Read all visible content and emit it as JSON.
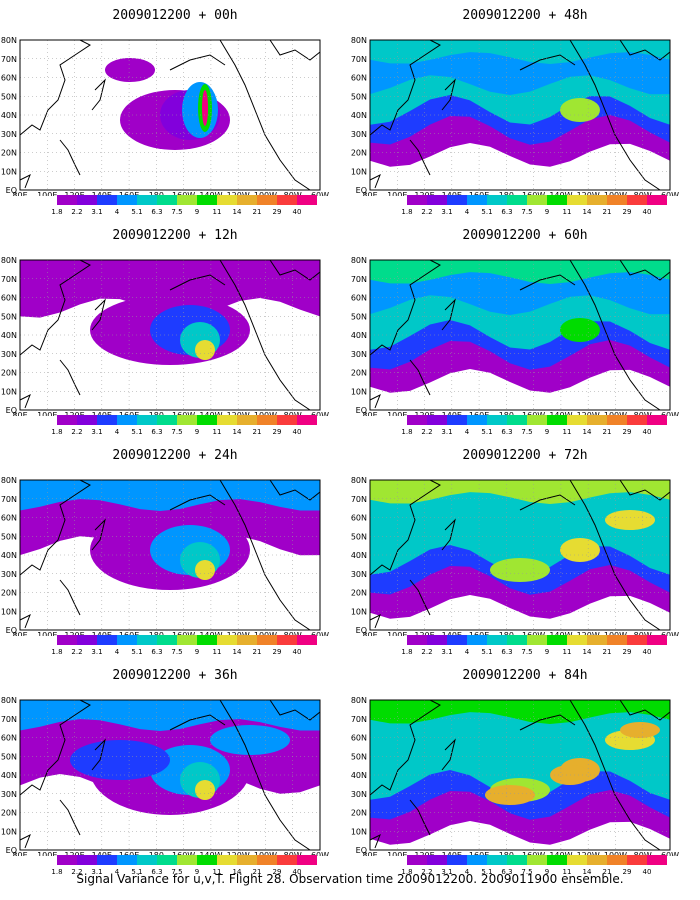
{
  "colorbar": {
    "labels": [
      "1.8",
      "2.2",
      "3.1",
      "4",
      "5.1",
      "6.3",
      "7.5",
      "9",
      "11",
      "14",
      "21",
      "29",
      "40"
    ],
    "colors": [
      "#a000c8",
      "#8200dc",
      "#1e3cff",
      "#0096ff",
      "#00c8c8",
      "#00dc8c",
      "#a0e632",
      "#00dc00",
      "#e6dc32",
      "#e6af2d",
      "#f08228",
      "#fa3c3c",
      "#f00082"
    ]
  },
  "axes": {
    "lon_ticks": [
      "80E",
      "100E",
      "120E",
      "140E",
      "160E",
      "180",
      "160W",
      "140W",
      "120W",
      "100W",
      "80W",
      "60W"
    ],
    "lat_ticks": [
      "EQ",
      "10N",
      "20N",
      "30N",
      "40N",
      "50N",
      "60N",
      "70N",
      "80N"
    ]
  },
  "panels": [
    {
      "title": "2009012200 + 00h",
      "level": 0,
      "side": "left"
    },
    {
      "title": "2009012200 + 12h",
      "level": 1,
      "side": "left"
    },
    {
      "title": "2009012200 + 24h",
      "level": 2,
      "side": "left"
    },
    {
      "title": "2009012200 + 36h",
      "level": 3,
      "side": "left"
    },
    {
      "title": "2009012200 + 48h",
      "level": 4,
      "side": "right"
    },
    {
      "title": "2009012200 + 60h",
      "level": 5,
      "side": "right"
    },
    {
      "title": "2009012200 + 72h",
      "level": 6,
      "side": "right"
    },
    {
      "title": "2009012200 + 84h",
      "level": 7,
      "side": "right"
    }
  ],
  "footer": "Signal Variance for u,v,T. Flight 28. Observation time 2009012200. 2009011900 ensemble."
}
